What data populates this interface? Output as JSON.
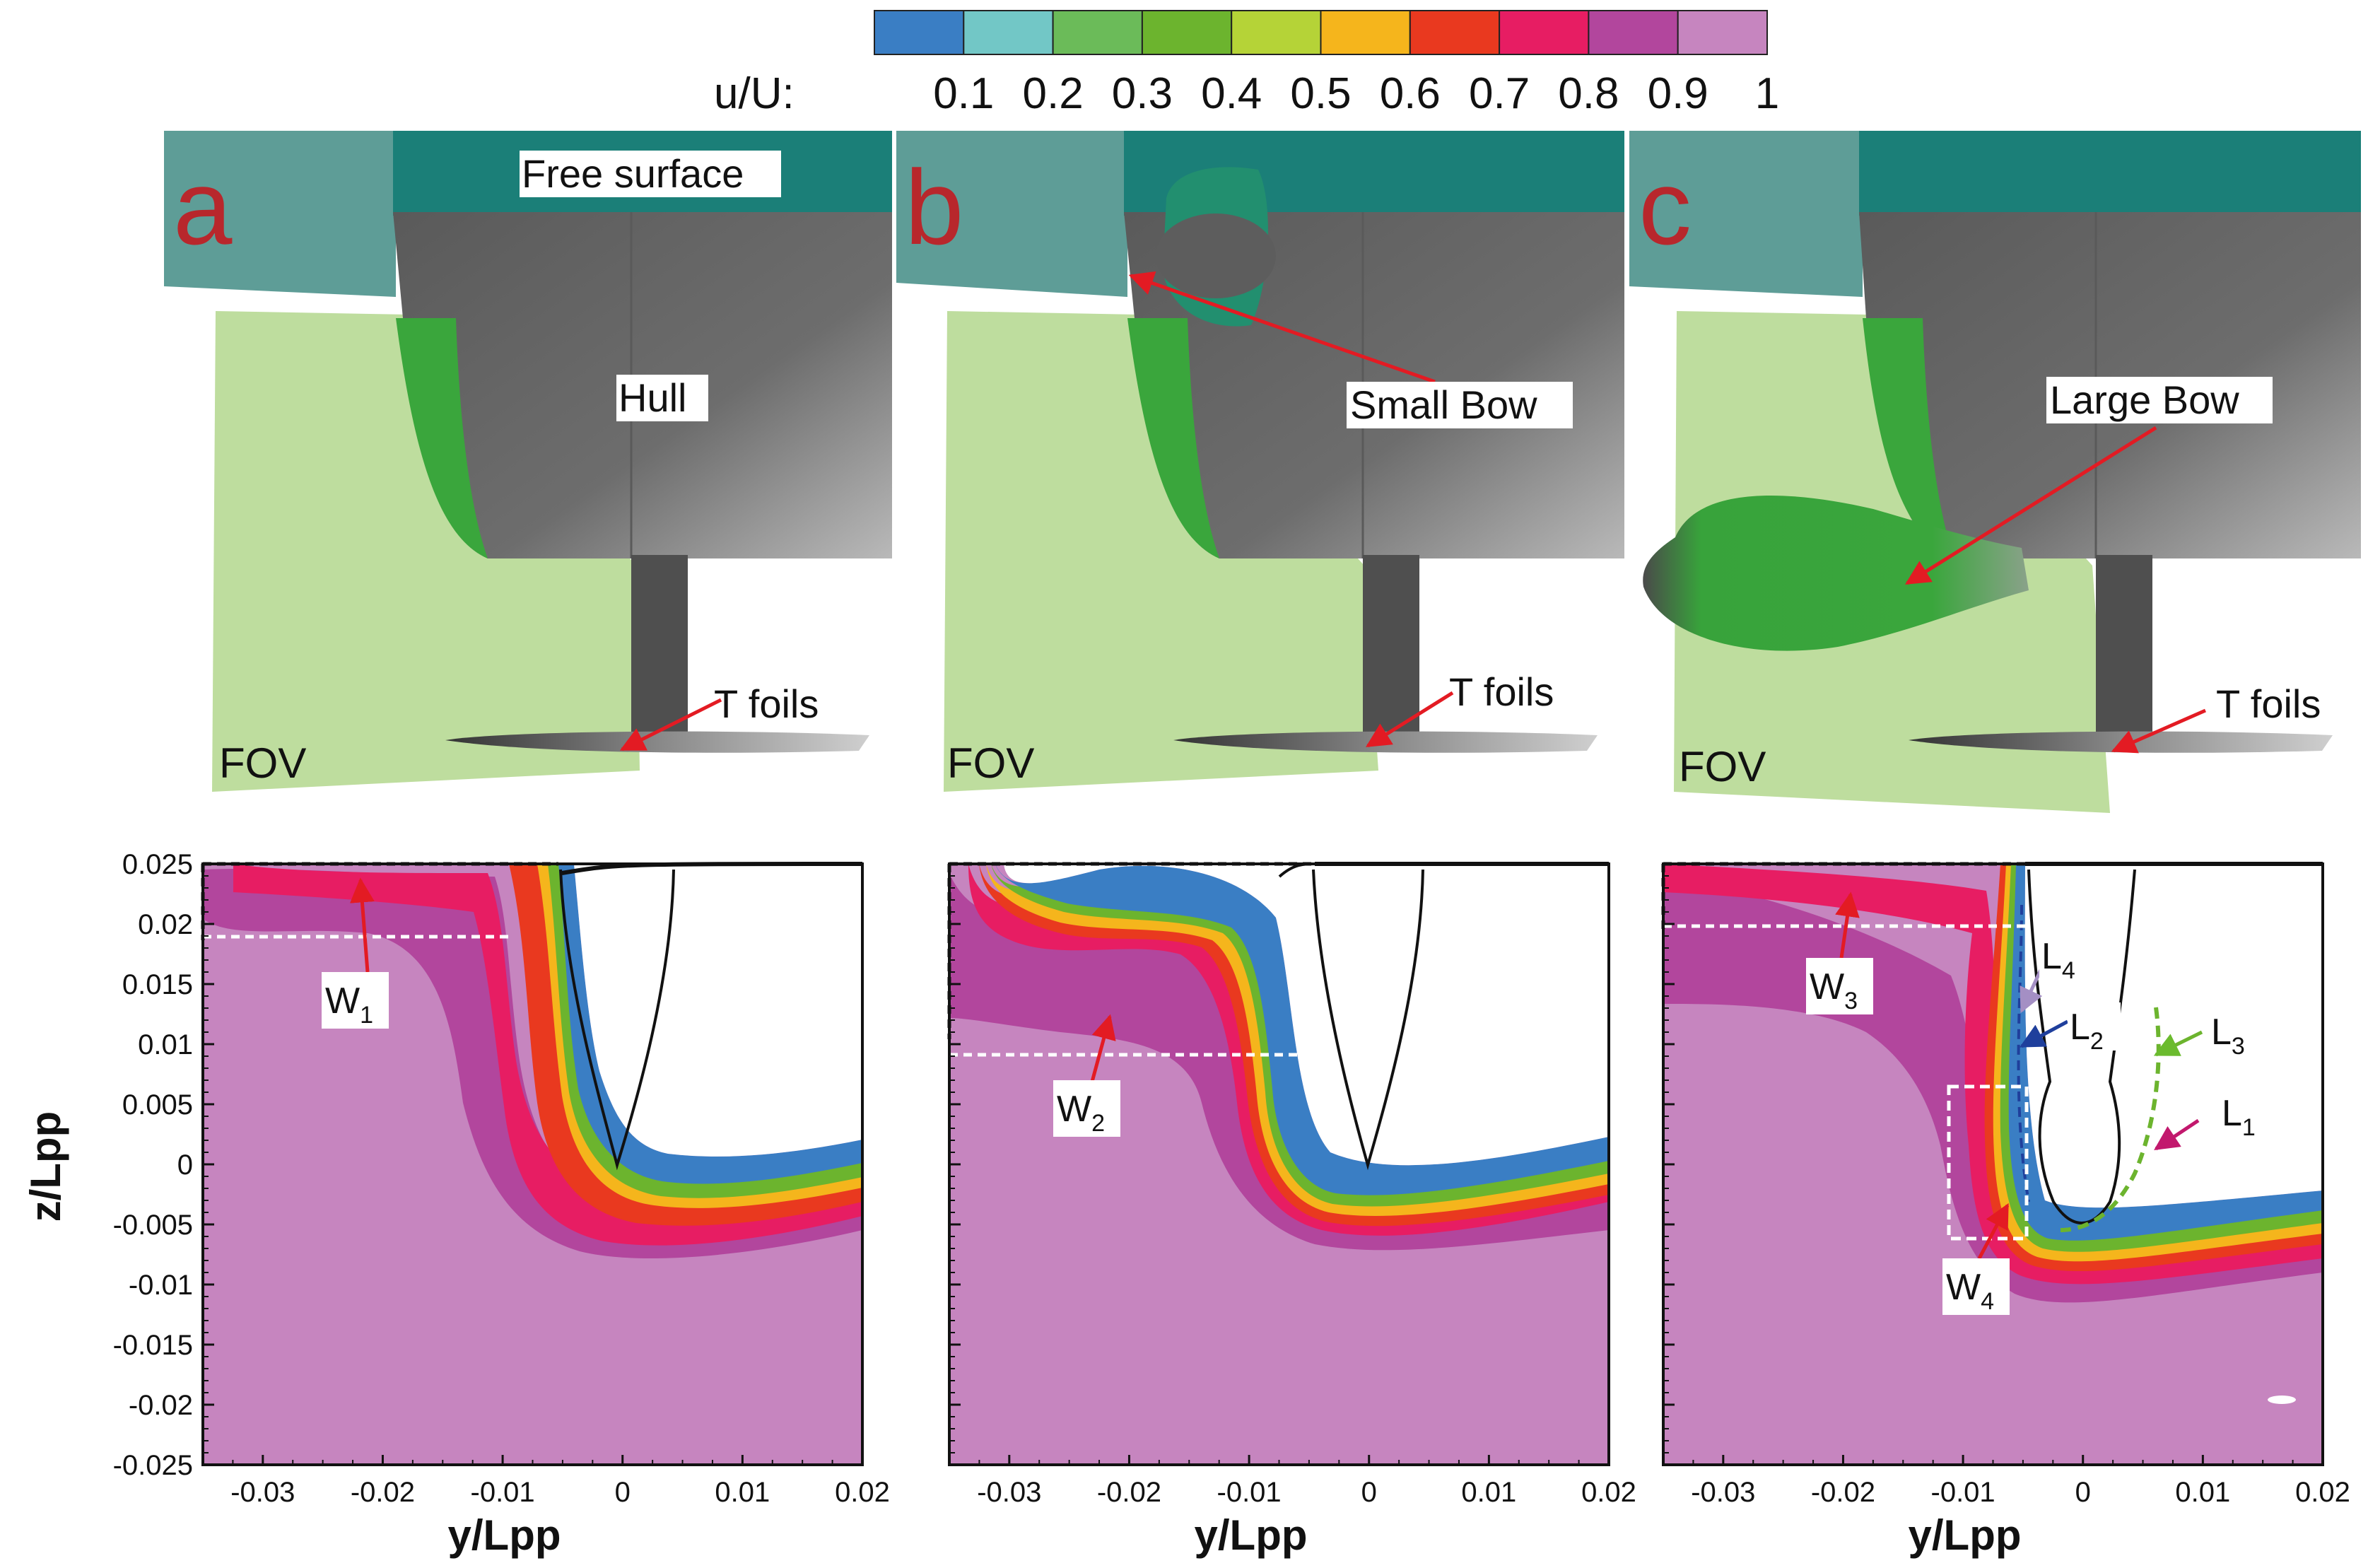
{
  "colorbar": {
    "label": "u/U:",
    "ticks": [
      "0.1",
      "0.2",
      "0.3",
      "0.4",
      "0.5",
      "0.6",
      "0.7",
      "0.8",
      "0.9",
      "1"
    ],
    "colors": [
      "#3a7ec4",
      "#72c7c6",
      "#6bbb59",
      "#6cb42e",
      "#b5d337",
      "#f5b51c",
      "#e9391f",
      "#e71d63",
      "#b2469d",
      "#c685bf"
    ]
  },
  "panels": [
    {
      "letter": "a",
      "labels": {
        "surface": "Free surface",
        "hull": "Hull",
        "foils": "T foils",
        "fov": "FOV"
      }
    },
    {
      "letter": "b",
      "labels": {
        "bow": "Small Bow",
        "foils": "T foils",
        "fov": "FOV"
      }
    },
    {
      "letter": "c",
      "labels": {
        "bow": "Large Bow",
        "foils": "T foils",
        "fov": "FOV"
      }
    }
  ],
  "plots": {
    "xticks": [
      "-0.03",
      "-0.02",
      "-0.01",
      "0",
      "0.01",
      "0.02"
    ],
    "yticks": [
      "0.025",
      "0.02",
      "0.015",
      "0.01",
      "0.005",
      "0",
      "-0.005",
      "-0.01",
      "-0.015",
      "-0.02",
      "-0.025"
    ],
    "xlabel": "y/Lpp",
    "ylabel": "z/Lpp",
    "xlim": [
      -0.035,
      0.02
    ],
    "ylim": [
      -0.025,
      0.025
    ],
    "annotations": {
      "w1": {
        "main": "W",
        "sub": "1"
      },
      "w2": {
        "main": "W",
        "sub": "2"
      },
      "w3": {
        "main": "W",
        "sub": "3"
      },
      "w4": {
        "main": "W",
        "sub": "4"
      },
      "l1": {
        "main": "L",
        "sub": "1"
      },
      "l2": {
        "main": "L",
        "sub": "2"
      },
      "l3": {
        "main": "L",
        "sub": "3"
      },
      "l4": {
        "main": "L",
        "sub": "4"
      }
    }
  },
  "colors": {
    "free_surface": "#1b7f78",
    "free_surface_transparent": "#5e9d97",
    "hull": "#6b6b6b",
    "bow_green": "#3aa63c",
    "fov": "#bedd9e",
    "background_flow": "#c685bf",
    "letter": "#b8272c",
    "arrow": "#e31b23"
  }
}
